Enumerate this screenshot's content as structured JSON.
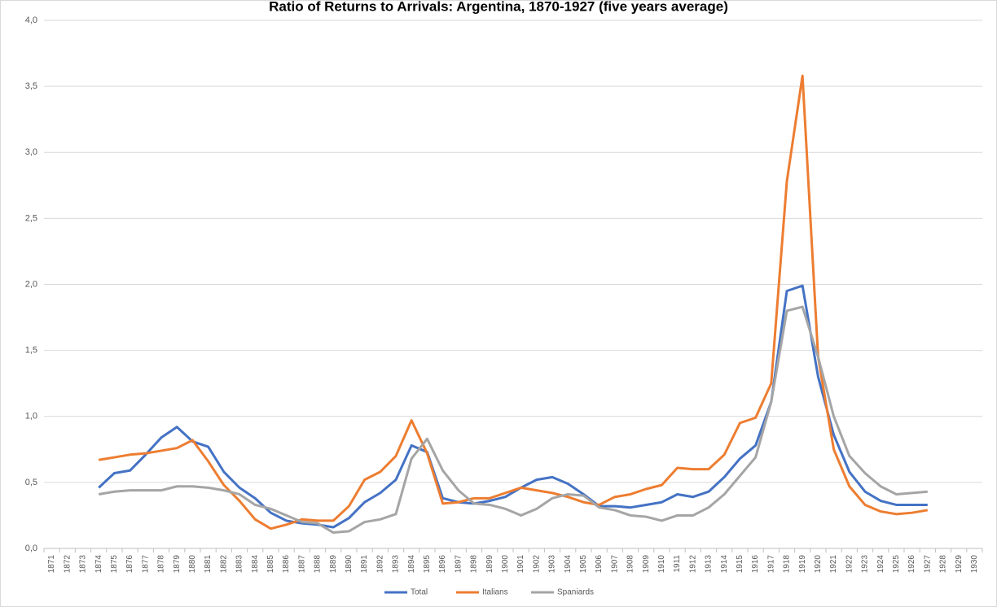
{
  "chart_data": {
    "type": "line",
    "title": "Ratio of Returns to Arrivals: Argentina, 1870-1927 (five years average)",
    "categories": [
      "1871",
      "1872",
      "1873",
      "1874",
      "1875",
      "1876",
      "1877",
      "1878",
      "1879",
      "1880",
      "1881",
      "1882",
      "1883",
      "1884",
      "1885",
      "1886",
      "1887",
      "1888",
      "1889",
      "1890",
      "1891",
      "1892",
      "1893",
      "1894",
      "1895",
      "1896",
      "1897",
      "1898",
      "1899",
      "1900",
      "1901",
      "1902",
      "1903",
      "1904",
      "1905",
      "1906",
      "1907",
      "1908",
      "1909",
      "1910",
      "1911",
      "1912",
      "1913",
      "1914",
      "1915",
      "1916",
      "1917",
      "1918",
      "1919",
      "1920",
      "1921",
      "1922",
      "1923",
      "1924",
      "1925",
      "1926",
      "1927",
      "1928",
      "1929",
      "1930"
    ],
    "series": [
      {
        "name": "Total",
        "color": "#4472c4",
        "values": [
          null,
          null,
          null,
          0.46,
          0.57,
          0.59,
          0.71,
          0.84,
          0.92,
          0.81,
          0.77,
          0.58,
          0.46,
          0.38,
          0.27,
          0.21,
          0.19,
          0.18,
          0.16,
          0.23,
          0.35,
          0.42,
          0.52,
          0.78,
          0.73,
          0.38,
          0.35,
          0.34,
          0.36,
          0.39,
          0.46,
          0.52,
          0.54,
          0.49,
          0.41,
          0.32,
          0.32,
          0.31,
          0.33,
          0.35,
          0.41,
          0.39,
          0.43,
          0.54,
          0.68,
          0.78,
          1.11,
          1.95,
          1.99,
          1.3,
          0.86,
          0.58,
          0.43,
          0.36,
          0.33,
          0.33,
          0.33,
          null,
          null,
          null
        ]
      },
      {
        "name": "Italians",
        "color": "#ed7d31",
        "values": [
          null,
          null,
          null,
          0.67,
          0.69,
          0.71,
          0.72,
          0.74,
          0.76,
          0.82,
          0.66,
          0.48,
          0.36,
          0.22,
          0.15,
          0.18,
          0.22,
          0.21,
          0.21,
          0.32,
          0.52,
          0.58,
          0.7,
          0.97,
          0.72,
          0.34,
          0.35,
          0.38,
          0.38,
          0.42,
          0.46,
          0.44,
          0.42,
          0.39,
          0.35,
          0.33,
          0.39,
          0.41,
          0.45,
          0.48,
          0.61,
          0.6,
          0.6,
          0.71,
          0.95,
          0.99,
          1.25,
          2.78,
          3.58,
          1.45,
          0.75,
          0.47,
          0.33,
          0.28,
          0.26,
          0.27,
          0.29,
          null,
          null,
          null
        ]
      },
      {
        "name": "Spaniards",
        "color": "#a5a5a5",
        "values": [
          null,
          null,
          null,
          0.41,
          0.43,
          0.44,
          0.44,
          0.44,
          0.47,
          0.47,
          0.46,
          0.44,
          0.41,
          0.33,
          0.3,
          0.25,
          0.2,
          0.19,
          0.12,
          0.13,
          0.2,
          0.22,
          0.26,
          0.68,
          0.83,
          0.59,
          0.44,
          0.34,
          0.33,
          0.3,
          0.25,
          0.3,
          0.38,
          0.41,
          0.4,
          0.31,
          0.29,
          0.25,
          0.24,
          0.21,
          0.25,
          0.25,
          0.31,
          0.41,
          0.55,
          0.69,
          1.11,
          1.8,
          1.83,
          1.45,
          1.0,
          0.7,
          0.57,
          0.47,
          0.41,
          0.42,
          0.43,
          null,
          null,
          null
        ]
      }
    ],
    "ylim": [
      0,
      4
    ],
    "yticks": [
      {
        "value": 0,
        "label": "0,0"
      },
      {
        "value": 0.5,
        "label": "0,5"
      },
      {
        "value": 1,
        "label": "1,0"
      },
      {
        "value": 1.5,
        "label": "1,5"
      },
      {
        "value": 2,
        "label": "2,0"
      },
      {
        "value": 2.5,
        "label": "2,5"
      },
      {
        "value": 3,
        "label": "3,0"
      },
      {
        "value": 3.5,
        "label": "3,5"
      },
      {
        "value": 4,
        "label": "4,0"
      }
    ],
    "grid": true,
    "legend": "bottom"
  }
}
